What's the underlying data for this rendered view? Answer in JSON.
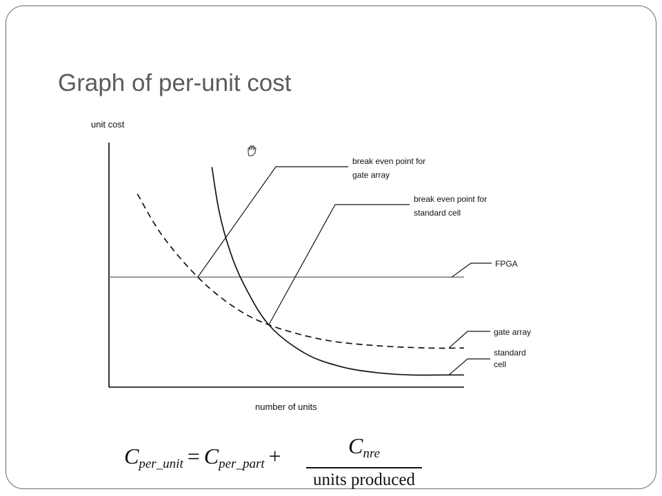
{
  "slide": {
    "title": "Graph of per-unit cost"
  },
  "chart_data": {
    "type": "line",
    "title": "",
    "xlabel": "number of units",
    "ylabel": "unit cost",
    "xlim": [
      0,
      100
    ],
    "ylim": [
      0,
      100
    ],
    "grid": false,
    "ticks": "none",
    "series": [
      {
        "name": "FPGA",
        "style": "solid",
        "x": [
          0,
          25,
          45,
          100
        ],
        "y": [
          45,
          45,
          45,
          45
        ]
      },
      {
        "name": "gate array",
        "style": "dashed",
        "x": [
          8,
          15,
          25,
          35,
          45,
          60,
          75,
          90,
          100
        ],
        "y": [
          79,
          62,
          45,
          33,
          25.5,
          19.5,
          17,
          16,
          16
        ]
      },
      {
        "name": "standard cell",
        "style": "solid",
        "x": [
          29,
          31,
          34,
          38,
          45,
          55,
          65,
          75,
          85,
          95,
          100
        ],
        "y": [
          90,
          72,
          56,
          42,
          25.5,
          14,
          8.5,
          6,
          5,
          5,
          5
        ]
      }
    ],
    "annotations": [
      {
        "lines": [
          "break even point for",
          "gate array"
        ],
        "x": 25,
        "y": 45
      },
      {
        "lines": [
          "break even point for",
          "standard cell"
        ],
        "x": 45,
        "y": 25.5
      }
    ]
  },
  "formula": {
    "lhs": "C",
    "lhs_sub": "per_unit",
    "eq": "=",
    "term": "C",
    "term_sub": "per_part",
    "plus": "+",
    "num": "C",
    "num_sub": "nre",
    "den": "units produced"
  }
}
